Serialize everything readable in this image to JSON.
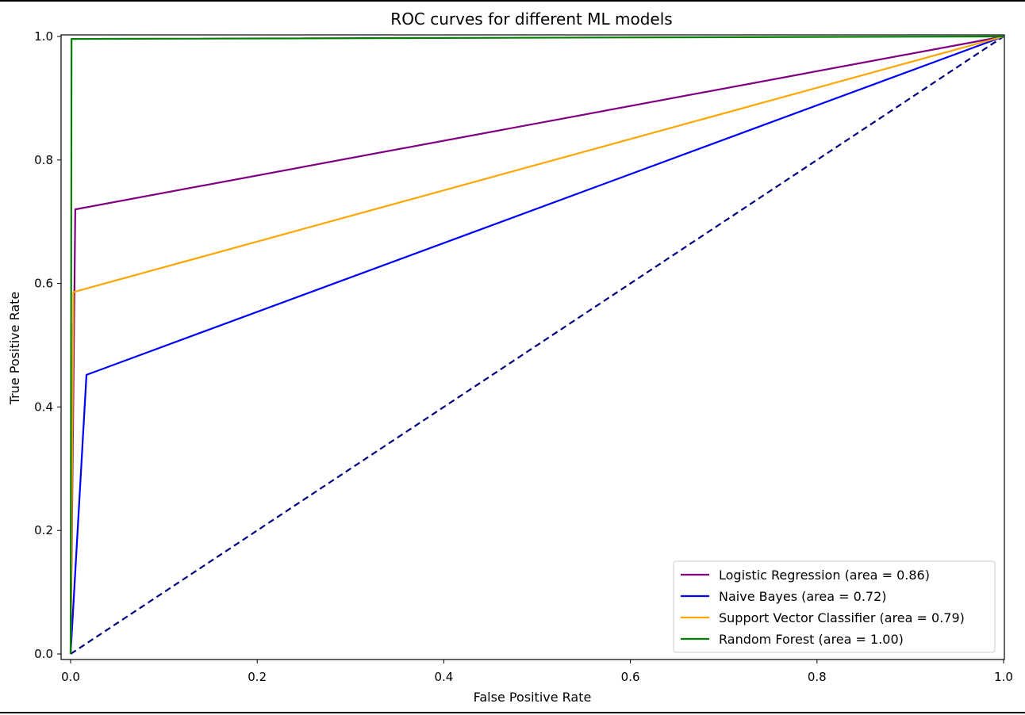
{
  "chart_data": {
    "type": "line",
    "title": "ROC curves for different ML models",
    "xlabel": "False Positive Rate",
    "ylabel": "True Positive Rate",
    "xlim": [
      0.0,
      1.0
    ],
    "ylim": [
      0.0,
      1.0
    ],
    "x_ticks": [
      0.0,
      0.2,
      0.4,
      0.6,
      0.8,
      1.0
    ],
    "y_ticks": [
      0.0,
      0.2,
      0.4,
      0.6,
      0.8,
      1.0
    ],
    "x_tick_labels": [
      "0.0",
      "0.2",
      "0.4",
      "0.6",
      "0.8",
      "1.0"
    ],
    "y_tick_labels": [
      "0.0",
      "0.2",
      "0.4",
      "0.6",
      "0.8",
      "1.0"
    ],
    "grid": false,
    "legend_position": "lower-right",
    "series": [
      {
        "name": "Logistic Regression (area = 0.86)",
        "color": "#800080",
        "style": "solid",
        "x": [
          0.0,
          0.005,
          1.0
        ],
        "y": [
          0.0,
          0.72,
          1.0
        ]
      },
      {
        "name": "Naive Bayes (area = 0.72)",
        "color": "#0000ff",
        "style": "solid",
        "x": [
          0.0,
          0.017,
          1.0
        ],
        "y": [
          0.0,
          0.452,
          1.0
        ]
      },
      {
        "name": "Support Vector Classifier (area = 0.79)",
        "color": "#ffa500",
        "style": "solid",
        "x": [
          0.0,
          0.003,
          1.0
        ],
        "y": [
          0.0,
          0.586,
          1.0
        ]
      },
      {
        "name": "Random Forest (area = 1.00)",
        "color": "#008000",
        "style": "solid",
        "x": [
          0.0,
          0.001,
          1.0
        ],
        "y": [
          0.0,
          0.996,
          1.0
        ]
      }
    ],
    "reference_line": {
      "color": "#000080",
      "style": "dashed",
      "x": [
        0.0,
        1.0
      ],
      "y": [
        0.0,
        1.0
      ]
    }
  }
}
